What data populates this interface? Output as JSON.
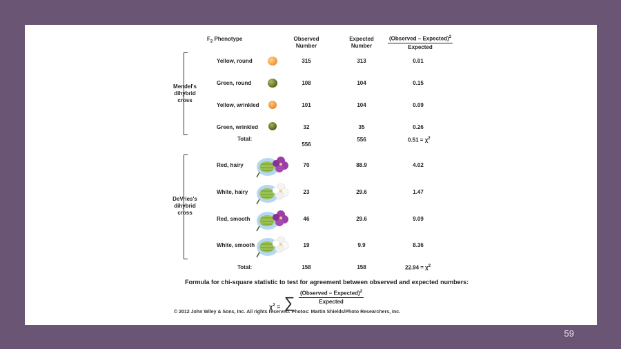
{
  "slide": {
    "page_number": "59",
    "headers": {
      "phenotype": "F",
      "phenotype_sub": "2",
      "phenotype_rest": " Phenotype",
      "observed_line1": "Observed",
      "observed_line2": "Number",
      "expected_line1": "Expected",
      "expected_line2": "Number",
      "ratio_num": "(Observed – Expected)",
      "ratio_den": "Expected"
    },
    "mendel": {
      "label_line1": "Mendel's",
      "label_line2": "dihybrid",
      "label_line3": "cross",
      "rows": [
        {
          "phenotype": "Yellow, round",
          "observed": "315",
          "expected": "313",
          "chi": "0.01",
          "icon": "yellow-round-pea-icon"
        },
        {
          "phenotype": "Green, round",
          "observed": "108",
          "expected": "104",
          "chi": "0.15",
          "icon": "green-round-pea-icon"
        },
        {
          "phenotype": "Yellow, wrinkled",
          "observed": "101",
          "expected": "104",
          "chi": "0.09",
          "icon": "yellow-wrinkled-pea-icon"
        },
        {
          "phenotype": "Green, wrinkled",
          "observed": "32",
          "expected": "35",
          "chi": "0.26",
          "icon": "green-wrinkled-pea-icon"
        }
      ],
      "total_label": "Total:",
      "total_observed": "556",
      "total_expected": "556",
      "total_chi": "0.51 = χ"
    },
    "devries": {
      "label_line1": "DeVries's",
      "label_line2": "dihybrid",
      "label_line3": "cross",
      "rows": [
        {
          "phenotype": "Red, hairy",
          "observed": "70",
          "expected": "88.9",
          "chi": "4.02",
          "icon": "purple-flower-icon"
        },
        {
          "phenotype": "White, hairy",
          "observed": "23",
          "expected": "29.6",
          "chi": "1.47",
          "icon": "white-flower-icon"
        },
        {
          "phenotype": "Red, smooth",
          "observed": "46",
          "expected": "29.6",
          "chi": "9.09",
          "icon": "purple-flower-icon"
        },
        {
          "phenotype": "White, smooth",
          "observed": "19",
          "expected": "9.9",
          "chi": "8.36",
          "icon": "white-flower-icon"
        }
      ],
      "total_label": "Total:",
      "total_observed": "158",
      "total_expected": "158",
      "total_chi": "22.94 = χ"
    },
    "formula": {
      "title": "Formula for chi-square statistic to test for agreement between observed and expected numbers:",
      "lhs": "χ",
      "equals": " =",
      "sigma": "∑",
      "num": "(Observed – Expected)",
      "den": "Expected"
    },
    "copyright": "© 2012 John Wiley & Sons, Inc. All rights reserved. Photos: Martin Shields/Photo Researchers, Inc.",
    "colors": {
      "background": "#6a5575",
      "slide": "#ffffff",
      "yellow_pea": "#f0a64a",
      "green_pea": "#6b7a2c",
      "purple_flower": "#9b3fa6",
      "white_flower": "#f4f4f4",
      "pod": "#9cc254",
      "glow": "#5aa6e6"
    }
  }
}
